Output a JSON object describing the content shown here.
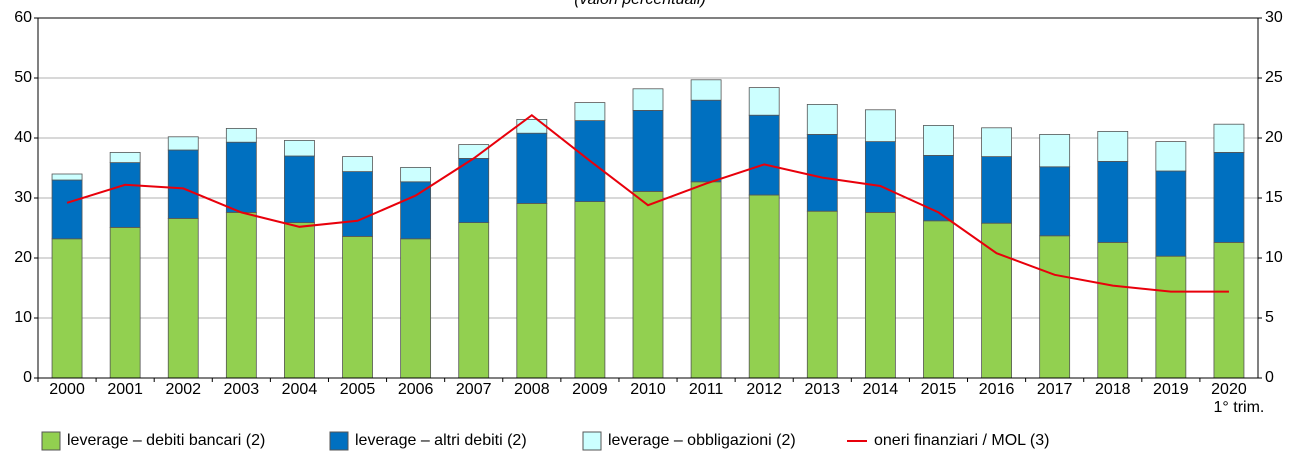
{
  "chart_data": {
    "type": "bar",
    "stacked": true,
    "subtitle": "(valori percentuali)",
    "categories": [
      "2000",
      "2001",
      "2002",
      "2003",
      "2004",
      "2005",
      "2006",
      "2007",
      "2008",
      "2009",
      "2010",
      "2011",
      "2012",
      "2013",
      "2014",
      "2015",
      "2016",
      "2017",
      "2018",
      "2019",
      "2020"
    ],
    "annotations": [
      {
        "text": "1° trim."
      }
    ],
    "series": [
      {
        "name": "leverage – debiti bancari (2)",
        "color": "#92d050",
        "type": "bar",
        "values": [
          23.2,
          25.1,
          26.6,
          27.6,
          25.9,
          23.6,
          23.2,
          25.9,
          29.1,
          29.4,
          31.1,
          32.7,
          30.5,
          27.8,
          27.6,
          26.2,
          25.8,
          23.7,
          22.6,
          20.3,
          22.6
        ]
      },
      {
        "name": "leverage – altri debiti (2)",
        "color": "#0070c0",
        "type": "bar",
        "values": [
          9.8,
          10.8,
          11.4,
          11.7,
          11.1,
          10.8,
          9.5,
          10.7,
          11.7,
          13.5,
          13.5,
          13.6,
          13.3,
          12.8,
          11.8,
          10.9,
          11.1,
          11.5,
          13.5,
          14.2,
          15.0
        ]
      },
      {
        "name": "leverage – obbligazioni (2)",
        "color": "#ccffff",
        "type": "bar",
        "values": [
          1.0,
          1.7,
          2.2,
          2.3,
          2.6,
          2.5,
          2.4,
          2.3,
          2.3,
          3.0,
          3.6,
          3.4,
          4.6,
          5.0,
          5.3,
          5.0,
          4.8,
          5.4,
          5.0,
          4.9,
          4.7
        ]
      },
      {
        "name": "oneri finanziari / MOL (3)",
        "color": "#e8000b",
        "type": "line",
        "axis": "y2",
        "values": [
          14.6,
          16.1,
          15.8,
          13.8,
          12.6,
          13.1,
          15.2,
          18.3,
          21.9,
          18.1,
          14.4,
          16.2,
          17.8,
          16.7,
          16.0,
          13.8,
          10.4,
          8.6,
          7.7,
          7.2,
          7.2
        ]
      }
    ],
    "ylim": [
      0,
      60
    ],
    "yticks": [
      0,
      10,
      20,
      30,
      40,
      50,
      60
    ],
    "y2lim": [
      0,
      30
    ],
    "y2ticks": [
      0,
      5,
      10,
      15,
      20,
      25,
      30
    ],
    "grid": true,
    "legend": "bottom"
  }
}
